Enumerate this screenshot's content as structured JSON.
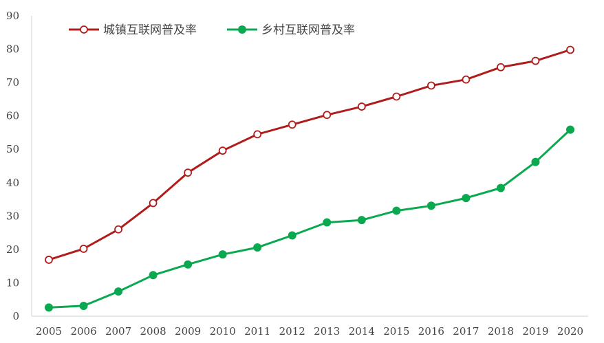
{
  "chart_data": {
    "type": "line",
    "title": "",
    "xlabel": "",
    "ylabel": "",
    "ylim": [
      0,
      90
    ],
    "yticks": [
      0,
      10,
      20,
      30,
      40,
      50,
      60,
      70,
      80,
      90
    ],
    "grid": false,
    "legend_position": "top-left",
    "x": [
      "2005",
      "2006",
      "2007",
      "2008",
      "2009",
      "2010",
      "2011",
      "2012",
      "2013",
      "2014",
      "2015",
      "2016",
      "2017",
      "2018",
      "2019",
      "2020"
    ],
    "series": [
      {
        "name": "城镇互联网普及率",
        "color": "#b01c1c",
        "marker": "open-circle",
        "values": [
          16.9,
          20.2,
          26.0,
          33.9,
          43.0,
          49.6,
          54.5,
          57.4,
          60.3,
          62.8,
          65.8,
          69.1,
          70.9,
          74.6,
          76.5,
          79.8
        ]
      },
      {
        "name": "乡村互联网普及率",
        "color": "#0aa84f",
        "marker": "filled-circle",
        "values": [
          2.6,
          3.1,
          7.4,
          12.3,
          15.5,
          18.5,
          20.6,
          24.2,
          28.1,
          28.8,
          31.6,
          33.1,
          35.4,
          38.4,
          46.2,
          55.9
        ]
      }
    ]
  }
}
